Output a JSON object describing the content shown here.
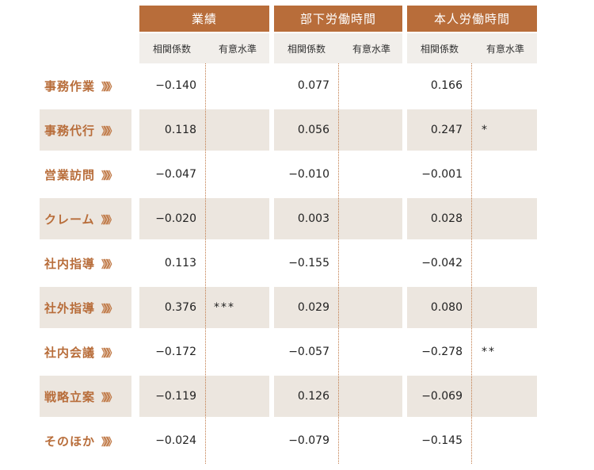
{
  "groups": [
    {
      "title": "業績"
    },
    {
      "title": "部下労働時間"
    },
    {
      "title": "本人労働時間"
    }
  ],
  "subheaders": {
    "coef": "相関係数",
    "sig": "有意水準"
  },
  "row_arrow": "》》》",
  "rows": [
    {
      "label": "事務作業",
      "values": [
        "−0.140",
        "",
        "0.077",
        "",
        "0.166",
        ""
      ]
    },
    {
      "label": "事務代行",
      "values": [
        "0.118",
        "",
        "0.056",
        "",
        "0.247",
        "*"
      ]
    },
    {
      "label": "営業訪問",
      "values": [
        "−0.047",
        "",
        "−0.010",
        "",
        "−0.001",
        ""
      ]
    },
    {
      "label": "クレーム",
      "values": [
        "−0.020",
        "",
        "0.003",
        "",
        "0.028",
        ""
      ]
    },
    {
      "label": "社内指導",
      "values": [
        "0.113",
        "",
        "−0.155",
        "",
        "−0.042",
        ""
      ]
    },
    {
      "label": "社外指導",
      "values": [
        "0.376",
        "***",
        "0.029",
        "",
        "0.080",
        ""
      ]
    },
    {
      "label": "社内会議",
      "values": [
        "−0.172",
        "",
        "−0.057",
        "",
        "−0.278",
        "**"
      ]
    },
    {
      "label": "戦略立案",
      "values": [
        "−0.119",
        "",
        "0.126",
        "",
        "−0.069",
        ""
      ]
    },
    {
      "label": "そのほか",
      "values": [
        "−0.024",
        "",
        "−0.079",
        "",
        "−0.145",
        ""
      ]
    }
  ]
}
